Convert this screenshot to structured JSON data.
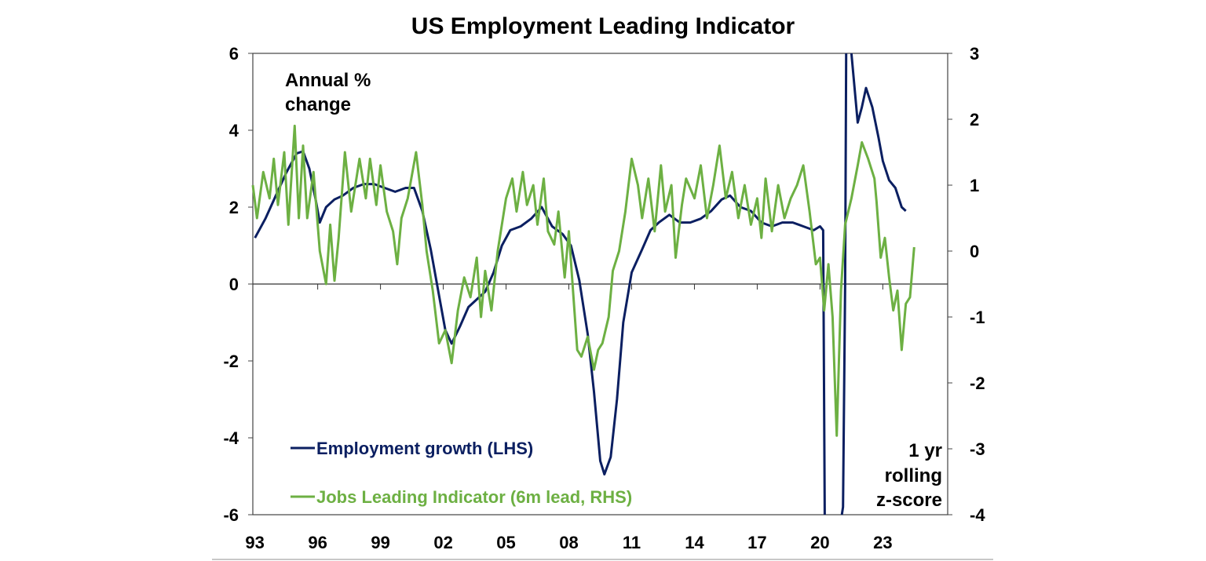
{
  "chart_data": {
    "type": "line",
    "title": "US Employment Leading Indicator",
    "left_axis_label": [
      "Annual %",
      "change"
    ],
    "right_axis_label": [
      "1 yr",
      "rolling",
      "z-score"
    ],
    "xlim": [
      1992.9,
      2026.1
    ],
    "ylim_left": [
      -6,
      6
    ],
    "ylim_right": [
      -4,
      3
    ],
    "left_ticks": [
      6,
      4,
      2,
      0,
      -2,
      -4,
      -6
    ],
    "right_ticks": [
      3,
      2,
      1,
      0,
      -1,
      -2,
      -3,
      -4
    ],
    "x_ticks": [
      {
        "year": 1993,
        "label": "93"
      },
      {
        "year": 1996,
        "label": "96"
      },
      {
        "year": 1999,
        "label": "99"
      },
      {
        "year": 2002,
        "label": "02"
      },
      {
        "year": 2005,
        "label": "05"
      },
      {
        "year": 2008,
        "label": "08"
      },
      {
        "year": 2011,
        "label": "11"
      },
      {
        "year": 2014,
        "label": "14"
      },
      {
        "year": 2017,
        "label": "17"
      },
      {
        "year": 2020,
        "label": "20"
      },
      {
        "year": 2023,
        "label": "23"
      }
    ],
    "legend_placement": "bottom-left",
    "series": [
      {
        "name": "Employment growth (LHS)",
        "axis": "left",
        "color": "#0b1f61",
        "points": [
          [
            1993.0,
            1.2
          ],
          [
            1993.5,
            1.7
          ],
          [
            1994.0,
            2.3
          ],
          [
            1994.5,
            2.9
          ],
          [
            1995.0,
            3.4
          ],
          [
            1995.3,
            3.45
          ],
          [
            1995.6,
            3.0
          ],
          [
            1995.9,
            2.2
          ],
          [
            1996.1,
            1.6
          ],
          [
            1996.4,
            2.0
          ],
          [
            1996.8,
            2.2
          ],
          [
            1997.2,
            2.3
          ],
          [
            1997.7,
            2.5
          ],
          [
            1998.2,
            2.6
          ],
          [
            1998.7,
            2.6
          ],
          [
            1999.2,
            2.5
          ],
          [
            1999.7,
            2.4
          ],
          [
            2000.2,
            2.5
          ],
          [
            2000.6,
            2.5
          ],
          [
            2001.0,
            1.9
          ],
          [
            2001.4,
            0.9
          ],
          [
            2001.8,
            -0.3
          ],
          [
            2002.1,
            -1.2
          ],
          [
            2002.4,
            -1.55
          ],
          [
            2002.8,
            -1.1
          ],
          [
            2003.2,
            -0.6
          ],
          [
            2003.6,
            -0.4
          ],
          [
            2004.0,
            -0.2
          ],
          [
            2004.4,
            0.3
          ],
          [
            2004.8,
            1.0
          ],
          [
            2005.2,
            1.4
          ],
          [
            2005.7,
            1.5
          ],
          [
            2006.2,
            1.7
          ],
          [
            2006.7,
            2.0
          ],
          [
            2007.2,
            1.5
          ],
          [
            2007.7,
            1.3
          ],
          [
            2008.1,
            1.0
          ],
          [
            2008.5,
            0.1
          ],
          [
            2008.9,
            -1.3
          ],
          [
            2009.2,
            -2.8
          ],
          [
            2009.5,
            -4.6
          ],
          [
            2009.7,
            -4.95
          ],
          [
            2010.0,
            -4.5
          ],
          [
            2010.3,
            -3.0
          ],
          [
            2010.6,
            -1.0
          ],
          [
            2011.0,
            0.3
          ],
          [
            2011.5,
            0.9
          ],
          [
            2011.9,
            1.4
          ],
          [
            2012.3,
            1.6
          ],
          [
            2012.8,
            1.8
          ],
          [
            2013.3,
            1.6
          ],
          [
            2013.8,
            1.6
          ],
          [
            2014.3,
            1.7
          ],
          [
            2014.8,
            1.9
          ],
          [
            2015.3,
            2.2
          ],
          [
            2015.7,
            2.3
          ],
          [
            2016.2,
            2.0
          ],
          [
            2016.7,
            1.9
          ],
          [
            2017.2,
            1.6
          ],
          [
            2017.7,
            1.5
          ],
          [
            2018.2,
            1.6
          ],
          [
            2018.7,
            1.6
          ],
          [
            2019.2,
            1.5
          ],
          [
            2019.7,
            1.4
          ],
          [
            2020.0,
            1.5
          ],
          [
            2020.15,
            1.4
          ],
          [
            2020.3,
            -13.5
          ],
          [
            2020.6,
            -9.0
          ],
          [
            2020.9,
            -6.5
          ],
          [
            2021.1,
            -5.8
          ],
          [
            2021.2,
            0.0
          ],
          [
            2021.3,
            12.5
          ],
          [
            2021.5,
            6.0
          ],
          [
            2021.8,
            4.2
          ],
          [
            2022.0,
            4.6
          ],
          [
            2022.2,
            5.1
          ],
          [
            2022.5,
            4.6
          ],
          [
            2022.8,
            3.8
          ],
          [
            2023.0,
            3.2
          ],
          [
            2023.3,
            2.7
          ],
          [
            2023.6,
            2.5
          ],
          [
            2023.9,
            2.0
          ],
          [
            2024.1,
            1.9
          ]
        ]
      },
      {
        "name": "Jobs Leading Indicator (6m lead, RHS)",
        "axis": "right",
        "color": "#6db043",
        "points": [
          [
            1992.9,
            1.0
          ],
          [
            1993.1,
            0.5
          ],
          [
            1993.4,
            1.2
          ],
          [
            1993.7,
            0.8
          ],
          [
            1993.9,
            1.4
          ],
          [
            1994.1,
            0.7
          ],
          [
            1994.4,
            1.5
          ],
          [
            1994.6,
            0.4
          ],
          [
            1994.9,
            1.9
          ],
          [
            1995.1,
            0.5
          ],
          [
            1995.3,
            1.6
          ],
          [
            1995.5,
            0.5
          ],
          [
            1995.8,
            1.2
          ],
          [
            1996.1,
            0.0
          ],
          [
            1996.4,
            -0.5
          ],
          [
            1996.6,
            0.4
          ],
          [
            1996.8,
            -0.45
          ],
          [
            1997.0,
            0.2
          ],
          [
            1997.3,
            1.5
          ],
          [
            1997.6,
            0.6
          ],
          [
            1998.0,
            1.4
          ],
          [
            1998.3,
            0.8
          ],
          [
            1998.5,
            1.4
          ],
          [
            1998.8,
            0.7
          ],
          [
            1999.0,
            1.3
          ],
          [
            1999.3,
            0.6
          ],
          [
            1999.6,
            0.3
          ],
          [
            1999.8,
            -0.2
          ],
          [
            2000.0,
            0.5
          ],
          [
            2000.3,
            0.8
          ],
          [
            2000.7,
            1.5
          ],
          [
            2001.0,
            0.7
          ],
          [
            2001.2,
            0.0
          ],
          [
            2001.5,
            -0.6
          ],
          [
            2001.8,
            -1.4
          ],
          [
            2002.1,
            -1.2
          ],
          [
            2002.4,
            -1.7
          ],
          [
            2002.7,
            -0.9
          ],
          [
            2003.0,
            -0.4
          ],
          [
            2003.3,
            -0.7
          ],
          [
            2003.6,
            -0.1
          ],
          [
            2003.8,
            -1.0
          ],
          [
            2004.0,
            -0.3
          ],
          [
            2004.3,
            -0.9
          ],
          [
            2004.6,
            0.0
          ],
          [
            2005.0,
            0.8
          ],
          [
            2005.3,
            1.1
          ],
          [
            2005.5,
            0.6
          ],
          [
            2005.8,
            1.2
          ],
          [
            2006.0,
            0.7
          ],
          [
            2006.3,
            1.0
          ],
          [
            2006.5,
            0.4
          ],
          [
            2006.8,
            1.1
          ],
          [
            2007.0,
            0.3
          ],
          [
            2007.3,
            0.1
          ],
          [
            2007.5,
            0.6
          ],
          [
            2007.8,
            -0.4
          ],
          [
            2008.0,
            0.3
          ],
          [
            2008.2,
            -0.6
          ],
          [
            2008.4,
            -1.5
          ],
          [
            2008.6,
            -1.6
          ],
          [
            2008.9,
            -1.3
          ],
          [
            2009.2,
            -1.8
          ],
          [
            2009.4,
            -1.5
          ],
          [
            2009.6,
            -1.4
          ],
          [
            2009.9,
            -1.0
          ],
          [
            2010.1,
            -0.3
          ],
          [
            2010.4,
            0.0
          ],
          [
            2010.7,
            0.6
          ],
          [
            2011.0,
            1.4
          ],
          [
            2011.3,
            1.0
          ],
          [
            2011.5,
            0.5
          ],
          [
            2011.8,
            1.1
          ],
          [
            2012.1,
            0.3
          ],
          [
            2012.4,
            1.3
          ],
          [
            2012.6,
            0.6
          ],
          [
            2012.9,
            1.0
          ],
          [
            2013.1,
            -0.1
          ],
          [
            2013.4,
            0.7
          ],
          [
            2013.6,
            1.1
          ],
          [
            2014.0,
            0.8
          ],
          [
            2014.3,
            1.3
          ],
          [
            2014.6,
            0.5
          ],
          [
            2014.9,
            1.0
          ],
          [
            2015.2,
            1.6
          ],
          [
            2015.5,
            0.8
          ],
          [
            2015.8,
            1.2
          ],
          [
            2016.1,
            0.5
          ],
          [
            2016.4,
            1.0
          ],
          [
            2016.7,
            0.4
          ],
          [
            2017.0,
            0.8
          ],
          [
            2017.2,
            0.2
          ],
          [
            2017.4,
            1.1
          ],
          [
            2017.7,
            0.3
          ],
          [
            2018.0,
            1.0
          ],
          [
            2018.3,
            0.5
          ],
          [
            2018.6,
            0.8
          ],
          [
            2018.9,
            1.0
          ],
          [
            2019.2,
            1.3
          ],
          [
            2019.5,
            0.6
          ],
          [
            2019.8,
            -0.2
          ],
          [
            2020.0,
            -0.1
          ],
          [
            2020.2,
            -0.9
          ],
          [
            2020.4,
            -0.2
          ],
          [
            2020.6,
            -1.0
          ],
          [
            2020.8,
            -2.8
          ],
          [
            2021.0,
            -0.6
          ],
          [
            2021.2,
            0.4
          ],
          [
            2021.5,
            0.8
          ],
          [
            2021.8,
            1.3
          ],
          [
            2022.0,
            1.65
          ],
          [
            2022.3,
            1.4
          ],
          [
            2022.6,
            1.1
          ],
          [
            2022.7,
            0.75
          ],
          [
            2022.9,
            -0.1
          ],
          [
            2023.1,
            0.2
          ],
          [
            2023.3,
            -0.4
          ],
          [
            2023.5,
            -0.9
          ],
          [
            2023.7,
            -0.6
          ],
          [
            2023.9,
            -1.5
          ],
          [
            2024.1,
            -0.8
          ],
          [
            2024.3,
            -0.7
          ],
          [
            2024.5,
            0.06
          ]
        ]
      }
    ]
  }
}
